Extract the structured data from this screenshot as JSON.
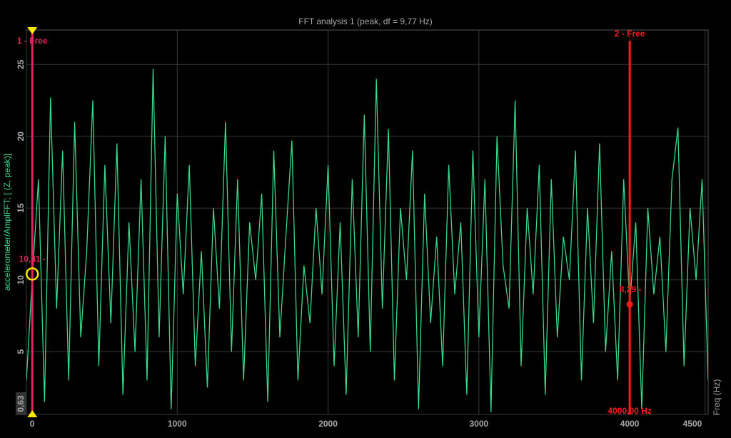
{
  "chart_data": {
    "type": "line",
    "title": "FFT analysis 1 (peak, df = 9,77 Hz)",
    "y_label": "accelerometer/AmplFFT; [ (Z, peak)]",
    "x_label": "Freq (Hz)",
    "color": "#38d98a",
    "x": [
      0,
      40,
      80,
      120,
      160,
      200,
      240,
      280,
      320,
      360,
      400,
      440,
      480,
      520,
      560,
      600,
      640,
      680,
      720,
      760,
      800,
      840,
      880,
      920,
      960,
      1000,
      1040,
      1080,
      1120,
      1160,
      1200,
      1240,
      1280,
      1320,
      1360,
      1400,
      1440,
      1480,
      1520,
      1560,
      1600,
      1640,
      1680,
      1720,
      1760,
      1800,
      1840,
      1880,
      1920,
      1960,
      2000,
      2040,
      2080,
      2120,
      2160,
      2200,
      2240,
      2280,
      2320,
      2360,
      2400,
      2440,
      2480,
      2520,
      2560,
      2600,
      2640,
      2680,
      2720,
      2760,
      2800,
      2840,
      2880,
      2920,
      2960,
      3000,
      3040,
      3080,
      3120,
      3160,
      3200,
      3240,
      3280,
      3320,
      3360,
      3400,
      3440,
      3480,
      3520,
      3560,
      3600,
      3640,
      3680,
      3720,
      3760,
      3800,
      3840,
      3880,
      3920,
      3960,
      4000,
      4040,
      4080,
      4120,
      4160,
      4200,
      4240,
      4280,
      4320,
      4360,
      4400,
      4440,
      4480,
      4520
    ],
    "values": [
      3,
      10.41,
      17,
      1.5,
      22.7,
      8,
      19,
      3,
      21,
      6,
      12,
      22.5,
      4,
      18,
      7,
      19.5,
      2,
      14,
      5,
      17,
      3,
      24.7,
      6,
      20,
      1,
      16,
      9,
      18,
      4,
      12,
      2.5,
      15,
      8,
      21,
      5,
      17,
      3,
      14,
      10,
      16,
      1.5,
      19,
      6,
      13,
      19.7,
      3,
      11,
      7,
      15,
      9,
      18,
      4,
      14,
      2,
      17,
      6,
      21.5,
      5,
      24,
      8,
      20.5,
      3,
      15,
      10,
      19,
      1,
      16,
      7,
      13,
      4,
      18,
      9,
      14,
      2,
      19,
      6,
      17,
      0.8,
      20,
      11,
      8,
      22.5,
      4,
      15,
      9,
      18,
      2,
      17,
      6,
      13,
      10,
      19,
      3,
      15,
      7,
      19.5,
      5,
      12,
      3,
      17,
      8.29,
      14,
      1,
      15,
      9,
      13,
      5,
      17,
      20.6,
      4,
      15,
      10,
      17,
      3
    ],
    "xlim": [
      0,
      4520
    ],
    "ylim": [
      0.63,
      27.4
    ],
    "xticks": [
      0,
      1000,
      2000,
      3000,
      4000,
      4500
    ],
    "yticks": [
      {
        "value": 0.63,
        "label": "0,63"
      },
      5,
      10,
      15,
      20,
      25
    ],
    "grid": true,
    "cursors": [
      {
        "name": "1 - Free",
        "x": 39.08,
        "value": 10.41,
        "value_label": "10,41 -",
        "color": "#e0245e"
      },
      {
        "name": "2 - Free",
        "x": 4000,
        "value": 8.29,
        "value_label": "8,29 -",
        "x_label": "4000,00 Hz",
        "color": "#ff1a1a"
      }
    ]
  }
}
